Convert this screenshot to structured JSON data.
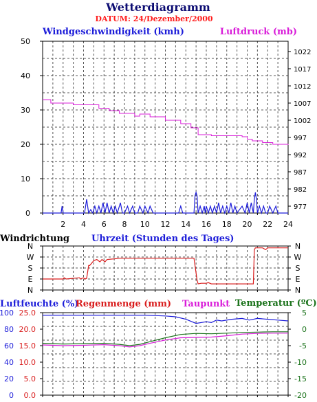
{
  "page": {
    "title": "Wetterdiagramm",
    "datum": "DATUM: 24/Dezember/2000"
  },
  "colors": {
    "navy": "#0d0d73",
    "blue": "#1c1cd9",
    "red": "#d91c1c",
    "magenta": "#d91cd9",
    "green": "#1c731c",
    "grid": "#555555"
  },
  "chart_data": [
    {
      "type": "line",
      "id": "wind_pressure",
      "title": "",
      "xlabel": "Uhrzeit (Stunden des Tages)",
      "xlim": [
        0,
        24
      ],
      "x_ticks": [
        2,
        4,
        6,
        8,
        10,
        12,
        14,
        16,
        18,
        20,
        22,
        24
      ],
      "left_axis": {
        "label": "Windgeschwindigkeit (kmh)",
        "lim": [
          0,
          50
        ],
        "ticks": [
          0,
          10,
          20,
          30,
          40,
          50
        ]
      },
      "right_axis": {
        "label": "Luftdruck (mb)",
        "lim": [
          975,
          1025
        ],
        "ticks": [
          977,
          982,
          987,
          992,
          997,
          1002,
          1007,
          1012,
          1017,
          1022
        ]
      },
      "grid": true,
      "series": [
        {
          "name": "Windgeschwindigkeit (kmh)",
          "axis": "left",
          "color": "#1c1cd9",
          "x": [
            0,
            1.8,
            1.9,
            2.0,
            4.1,
            4.3,
            4.5,
            4.7,
            4.9,
            5.1,
            5.3,
            5.5,
            5.7,
            5.9,
            6.1,
            6.3,
            6.5,
            6.7,
            6.9,
            7.1,
            7.3,
            7.6,
            7.8,
            8.0,
            8.3,
            8.5,
            8.8,
            9.0,
            9.3,
            9.5,
            9.8,
            10.0,
            10.3,
            10.5,
            10.8,
            11.0,
            13.3,
            13.5,
            13.7,
            14.8,
            14.9,
            15.0,
            15.1,
            15.2,
            15.4,
            15.6,
            15.8,
            15.9,
            16.0,
            16.2,
            16.4,
            16.6,
            16.8,
            17.0,
            17.2,
            17.4,
            17.6,
            17.8,
            18.0,
            18.2,
            18.4,
            18.6,
            18.8,
            19.0,
            19.5,
            19.8,
            20.0,
            20.2,
            20.4,
            20.6,
            20.7,
            20.8,
            20.9,
            21.0,
            21.2,
            21.4,
            21.6,
            21.8,
            22.0,
            22.2,
            22.5,
            22.8,
            23.0,
            24.0
          ],
          "values": [
            0,
            0,
            2,
            0,
            0,
            4,
            0,
            1,
            0,
            2,
            0,
            2,
            0,
            3,
            0,
            3,
            0,
            2,
            0,
            2,
            0,
            3,
            0,
            0,
            2,
            0,
            2,
            0,
            0,
            2,
            0,
            2,
            0,
            2,
            0,
            0,
            0,
            2,
            0,
            0,
            5,
            6,
            5,
            0,
            2,
            0,
            2,
            0,
            2,
            0,
            2,
            0,
            2,
            0,
            3,
            0,
            2,
            0,
            2,
            0,
            3,
            0,
            2,
            0,
            2,
            0,
            3,
            0,
            3,
            0,
            4,
            6,
            4,
            0,
            2,
            0,
            2,
            0,
            0,
            2,
            0,
            2,
            0,
            0
          ]
        },
        {
          "name": "Luftdruck (mb)",
          "axis": "right",
          "color": "#d91cd9",
          "x": [
            0,
            0.8,
            3.0,
            5.5,
            6.5,
            7.5,
            9.0,
            9.5,
            10.5,
            12.0,
            13.5,
            14.5,
            15.2,
            16.5,
            19.5,
            20.0,
            20.5,
            21.5,
            22.5,
            24.0
          ],
          "values": [
            1008,
            1007,
            1006.5,
            1005.5,
            1004.8,
            1004,
            1003.2,
            1003.8,
            1003,
            1002,
            1001,
            999.8,
            997.8,
            997.5,
            997.2,
            996.5,
            996.0,
            995.5,
            995.0,
            994.8
          ]
        }
      ]
    },
    {
      "type": "line",
      "id": "wind_direction",
      "title": "",
      "ylabel": "Windrichtung",
      "xlim": [
        0,
        24
      ],
      "y_categories": [
        "N",
        "O",
        "S",
        "W",
        "N"
      ],
      "ylim": [
        0,
        360
      ],
      "grid": true,
      "series": [
        {
          "name": "Windrichtung",
          "color": "#d91c1c",
          "x": [
            0,
            2.0,
            2.1,
            2.3,
            3.6,
            3.7,
            4.0,
            4.1,
            4.3,
            4.5,
            4.6,
            5.0,
            5.3,
            5.6,
            5.8,
            6.1,
            6.3,
            7.0,
            7.5,
            14.8,
            15.1,
            15.2,
            15.5,
            16.0,
            16.2,
            16.5,
            20.6,
            20.7,
            20.8,
            21.5,
            21.8,
            22.0,
            22.5,
            24.0
          ],
          "values": [
            90,
            90,
            100,
            90,
            100,
            90,
            100,
            90,
            95,
            200,
            200,
            240,
            250,
            230,
            250,
            230,
            250,
            255,
            260,
            260,
            80,
            50,
            55,
            55,
            60,
            50,
            50,
            330,
            345,
            345,
            330,
            345,
            345,
            345
          ]
        }
      ]
    },
    {
      "type": "line",
      "id": "humidity_temp",
      "title": "",
      "xlim": [
        0,
        24
      ],
      "axes": [
        {
          "label": "Luftfeuchte (%)",
          "color": "#1c1cd9",
          "lim": [
            0,
            100
          ],
          "ticks": [
            0,
            20,
            40,
            60,
            80,
            100
          ]
        },
        {
          "label": "Regenmenge (mm)",
          "color": "#d91c1c",
          "lim": [
            0,
            25
          ],
          "ticks": [
            0.0,
            5.0,
            10.0,
            15.0,
            20.0,
            25.0
          ]
        },
        {
          "label": "Taupunkt",
          "color": "#d91cd9"
        },
        {
          "label": "Temperatur (ºC)",
          "color": "#1c731c",
          "lim": [
            -20,
            5
          ],
          "ticks": [
            5,
            0,
            -5,
            -10,
            -15,
            -20
          ]
        }
      ],
      "grid": true,
      "series": [
        {
          "name": "Luftfeuchte (%)",
          "axis": "Luftfeuchte (%)",
          "color": "#1c1cd9",
          "x": [
            0,
            8.0,
            10.0,
            12.0,
            13.0,
            14.0,
            15.0,
            16.0,
            16.5,
            17.0,
            17.5,
            18.5,
            19.5,
            20.2,
            21.0,
            22.0,
            23.0,
            24.0
          ],
          "values": [
            97,
            97,
            97,
            96,
            95,
            92,
            87,
            89,
            88,
            91,
            90,
            92,
            93,
            91,
            93,
            92,
            91,
            90
          ]
        },
        {
          "name": "Temperatur (ºC)",
          "axis": "Temperatur (ºC)",
          "color": "#1c731c",
          "x": [
            0,
            2,
            4,
            6,
            7.5,
            8.5,
            9.5,
            10.5,
            12,
            13.5,
            15,
            16.5,
            18,
            19.5,
            21,
            22.5,
            24
          ],
          "values": [
            -4.3,
            -4.5,
            -4.4,
            -4.3,
            -4.6,
            -5.0,
            -4.6,
            -3.8,
            -2.6,
            -1.6,
            -1.3,
            -1.4,
            -1.2,
            -1.0,
            -0.9,
            -0.8,
            -0.8
          ]
        },
        {
          "name": "Taupunkt",
          "axis": "Temperatur (ºC)",
          "color": "#d91cd9",
          "x": [
            0,
            2,
            4,
            6,
            7.5,
            8.5,
            9.5,
            10.5,
            12,
            13.5,
            15,
            16.5,
            18,
            19.5,
            21,
            22.5,
            24
          ],
          "values": [
            -4.8,
            -5.0,
            -4.9,
            -4.7,
            -5.0,
            -5.4,
            -5.0,
            -4.3,
            -3.3,
            -2.6,
            -2.5,
            -2.4,
            -2.0,
            -1.5,
            -1.3,
            -1.2,
            -1.2
          ]
        }
      ]
    }
  ]
}
